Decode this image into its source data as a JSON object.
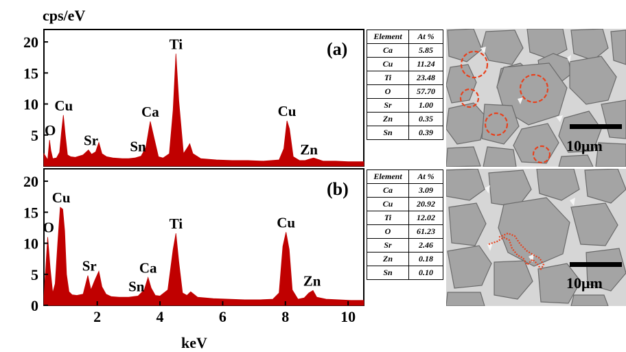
{
  "colors": {
    "spectrum_fill": "#c00000",
    "marker": "#e8401c",
    "scale_bar": "#000000",
    "grain_bg": "#c9c9c9",
    "grain": "#a3a3a3"
  },
  "chart_data": [
    {
      "type": "area",
      "panel_label": "(a)",
      "ylabel": "cps/eV",
      "xlabel": "keV",
      "xlim": [
        0.3,
        10.5
      ],
      "ylim": [
        0,
        22
      ],
      "yticks": [
        5,
        10,
        15,
        20
      ],
      "xticks": [],
      "x": [
        0.3,
        0.42,
        0.48,
        0.52,
        0.58,
        0.7,
        0.8,
        0.86,
        0.92,
        0.98,
        1.05,
        1.15,
        1.3,
        1.55,
        1.72,
        1.82,
        1.95,
        2.05,
        2.15,
        2.3,
        2.5,
        2.8,
        3.0,
        3.2,
        3.4,
        3.55,
        3.69,
        3.8,
        3.95,
        4.1,
        4.3,
        4.42,
        4.51,
        4.6,
        4.75,
        4.88,
        4.95,
        5.05,
        5.3,
        5.8,
        6.3,
        6.8,
        7.3,
        7.8,
        7.95,
        8.05,
        8.13,
        8.25,
        8.45,
        8.63,
        8.75,
        8.9,
        9.2,
        9.6,
        10.0,
        10.5
      ],
      "y": [
        2.0,
        1.0,
        4.2,
        2.5,
        1.2,
        1.3,
        2.2,
        5.5,
        8.2,
        5.0,
        1.8,
        1.5,
        1.4,
        1.8,
        2.6,
        1.9,
        2.3,
        3.8,
        2.0,
        1.5,
        1.3,
        1.2,
        1.2,
        1.3,
        1.6,
        3.0,
        7.2,
        4.8,
        1.5,
        1.3,
        2.0,
        9.0,
        18.1,
        10.5,
        2.0,
        3.0,
        3.6,
        2.0,
        1.2,
        1.0,
        0.9,
        0.9,
        0.8,
        1.0,
        2.8,
        7.3,
        6.0,
        1.5,
        0.9,
        0.9,
        1.1,
        1.3,
        0.8,
        0.8,
        0.7,
        0.7
      ],
      "annotations": [
        {
          "label": "O",
          "x": 0.5,
          "y": 4.2
        },
        {
          "label": "Cu",
          "x": 0.93,
          "y": 8.2
        },
        {
          "label": "Sr",
          "x": 1.8,
          "y": 2.6
        },
        {
          "label": "Sn",
          "x": 3.3,
          "y": 1.6
        },
        {
          "label": "Ca",
          "x": 3.69,
          "y": 7.2
        },
        {
          "label": "Ti",
          "x": 4.51,
          "y": 18.1
        },
        {
          "label": "Cu",
          "x": 8.05,
          "y": 7.3
        },
        {
          "label": "Zn",
          "x": 8.75,
          "y": 1.1
        }
      ]
    },
    {
      "type": "area",
      "panel_label": "(b)",
      "ylabel": "",
      "xlabel": "keV",
      "xlim": [
        0.3,
        10.5
      ],
      "ylim": [
        0,
        22
      ],
      "yticks": [
        0,
        5,
        10,
        15,
        20
      ],
      "xticks": [
        2,
        4,
        6,
        8,
        10
      ],
      "x": [
        0.3,
        0.42,
        0.5,
        0.58,
        0.66,
        0.74,
        0.82,
        0.9,
        0.96,
        1.02,
        1.1,
        1.2,
        1.35,
        1.55,
        1.7,
        1.8,
        1.92,
        2.05,
        2.15,
        2.28,
        2.45,
        2.7,
        3.0,
        3.3,
        3.5,
        3.62,
        3.72,
        3.85,
        4.0,
        4.25,
        4.42,
        4.51,
        4.6,
        4.72,
        4.86,
        4.98,
        5.2,
        5.7,
        6.2,
        6.7,
        7.2,
        7.6,
        7.8,
        7.92,
        8.02,
        8.12,
        8.22,
        8.4,
        8.6,
        8.75,
        8.88,
        9.0,
        9.3,
        9.7,
        10.1,
        10.5
      ],
      "y": [
        1.5,
        11.0,
        6.0,
        2.0,
        3.5,
        10.0,
        15.8,
        15.5,
        12.0,
        5.0,
        2.2,
        1.7,
        1.6,
        1.8,
        4.8,
        2.5,
        4.0,
        5.5,
        3.0,
        1.8,
        1.4,
        1.3,
        1.3,
        1.5,
        2.5,
        4.5,
        2.8,
        1.6,
        1.5,
        2.5,
        9.0,
        11.6,
        7.0,
        2.0,
        1.6,
        2.2,
        1.3,
        1.1,
        1.0,
        0.9,
        0.9,
        1.0,
        2.0,
        9.5,
        11.8,
        9.0,
        2.5,
        1.0,
        1.2,
        2.0,
        2.4,
        1.3,
        1.0,
        0.9,
        0.8,
        0.8
      ],
      "annotations": [
        {
          "label": "O",
          "x": 0.45,
          "y": 11.0
        },
        {
          "label": "Cu",
          "x": 0.85,
          "y": 15.8
        },
        {
          "label": "Sr",
          "x": 1.75,
          "y": 4.8
        },
        {
          "label": "Sn",
          "x": 3.25,
          "y": 1.5
        },
        {
          "label": "Ca",
          "x": 3.62,
          "y": 4.5
        },
        {
          "label": "Ti",
          "x": 4.51,
          "y": 11.6
        },
        {
          "label": "Cu",
          "x": 8.02,
          "y": 11.8
        },
        {
          "label": "Zn",
          "x": 8.85,
          "y": 2.4
        }
      ]
    }
  ],
  "tables": [
    {
      "headers": [
        "Element",
        "At %"
      ],
      "rows": [
        [
          "Ca",
          "5.85"
        ],
        [
          "Cu",
          "11.24"
        ],
        [
          "Ti",
          "23.48"
        ],
        [
          "O",
          "57.70"
        ],
        [
          "Sr",
          "1.00"
        ],
        [
          "Zn",
          "0.35"
        ],
        [
          "Sn",
          "0.39"
        ]
      ]
    },
    {
      "headers": [
        "Element",
        "At %"
      ],
      "rows": [
        [
          "Ca",
          "3.09"
        ],
        [
          "Cu",
          "20.92"
        ],
        [
          "Ti",
          "12.02"
        ],
        [
          "O",
          "61.23"
        ],
        [
          "Sr",
          "2.46"
        ],
        [
          "Zn",
          "0.18"
        ],
        [
          "Sn",
          "0.10"
        ]
      ]
    }
  ],
  "micrographs": [
    {
      "scale_label": "10μm",
      "marker": "dashed-circles"
    },
    {
      "scale_label": "10μm",
      "marker": "dotted-boundary-line"
    }
  ]
}
